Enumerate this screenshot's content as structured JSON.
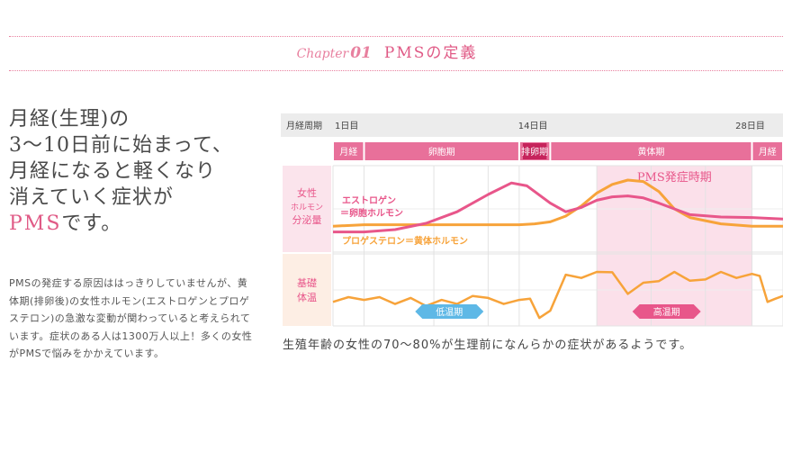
{
  "chapter": {
    "word": "Chapter",
    "number": "01",
    "title": "PMSの定義"
  },
  "headline": {
    "lines": [
      "月経(生理)の",
      "3～10日前に始まって、",
      "月経になると軽くなり",
      "消えていく症状が"
    ],
    "last_pms": "PMS",
    "last_rest": "です。"
  },
  "body_text": "PMSの発症する原因ははっきりしていませんが、黄体期(排卵後)の女性ホルモン(エストロゲンとプロゲステロン)の急激な変動が関わっていると考えられています。症状のある人は1300万人以上！多くの女性がPMSで悩みをかかえています。",
  "caption": "生殖年齢の女性の70～80%が生理前になんらかの症状があるようです。",
  "colors": {
    "pink": "#e8568a",
    "orange": "#f7a33a",
    "header_gray": "#ececec",
    "phase_pink": "#e8709a",
    "ovulation_dark": "#c6245c",
    "pms_band": "#fbe0ea",
    "label_bg_pink": "#fbe4ec",
    "label_bg_peach": "#fdeee4",
    "low_temp_blue": "#5eb8e6"
  },
  "chart_data": {
    "type": "line",
    "header": {
      "label": "月経周期",
      "day_ticks": [
        "1日目",
        "14日目",
        "28日目"
      ]
    },
    "phases": [
      {
        "label": "月経",
        "start_day": 1,
        "end_day": 3
      },
      {
        "label": "卵胞期",
        "start_day": 3,
        "end_day": 13
      },
      {
        "label": "排卵期",
        "start_day": 13,
        "end_day": 15
      },
      {
        "label": "黄体期",
        "start_day": 15,
        "end_day": 28
      },
      {
        "label": "月経",
        "start_day": 28,
        "end_day": 30
      }
    ],
    "pms_period": {
      "label": "PMS発症時期",
      "start_day": 18,
      "end_day": 28
    },
    "hormone_panel_label": [
      "女性",
      "ホルモン",
      "分泌量"
    ],
    "temperature_panel_label": [
      "基礎",
      "体温"
    ],
    "series": [
      {
        "name": "エストロゲン",
        "subname": "＝卵胞ホルモン",
        "color": "#e8568a",
        "x": [
          1,
          3,
          5,
          7,
          9,
          11,
          12.5,
          13.5,
          15,
          16,
          17,
          18,
          19,
          20,
          21,
          22,
          23,
          24,
          26,
          28,
          30
        ],
        "y": [
          7,
          7,
          7.8,
          10,
          14,
          20,
          24,
          23,
          17,
          14,
          15.5,
          18,
          19.2,
          19.5,
          18.8,
          17,
          15,
          13,
          12.2,
          12,
          11.5
        ]
      },
      {
        "name": "プロゲステロン＝黄体ホルモン",
        "color": "#f7a33a",
        "x": [
          1,
          3,
          5,
          7,
          9,
          11,
          13,
          14,
          15,
          16,
          17,
          18,
          19,
          20,
          21,
          22,
          23,
          24,
          26,
          28,
          30
        ],
        "y": [
          9,
          9.5,
          9.5,
          9.5,
          9.5,
          9.5,
          9.5,
          9.8,
          10.5,
          12.5,
          16,
          20.5,
          23.5,
          25,
          24.5,
          21,
          15,
          12,
          9.8,
          9,
          9
        ]
      },
      {
        "name": "基礎体温",
        "color": "#f7a33a",
        "x": [
          1,
          2,
          3,
          4,
          5,
          6,
          7,
          8,
          9,
          10,
          11,
          12,
          13,
          13.7,
          14.3,
          15,
          16,
          17,
          18,
          19,
          20,
          21,
          22,
          23,
          24,
          25,
          26,
          27,
          28,
          28.5,
          29,
          29.5,
          30
        ],
        "y": [
          6,
          7.2,
          6.5,
          7.2,
          5.5,
          7,
          5,
          6.5,
          5.5,
          7.5,
          7,
          5.5,
          6.5,
          6.8,
          2,
          3.8,
          12.8,
          12,
          13.5,
          13.4,
          8,
          10.8,
          11.2,
          13.5,
          11.3,
          11.6,
          13.5,
          12,
          13,
          12.5,
          6,
          6.8,
          7.5
        ]
      }
    ],
    "temperature_labels": [
      {
        "label": "低温期",
        "center_day": 8.5
      },
      {
        "label": "高温期",
        "center_day": 22.5
      }
    ]
  }
}
